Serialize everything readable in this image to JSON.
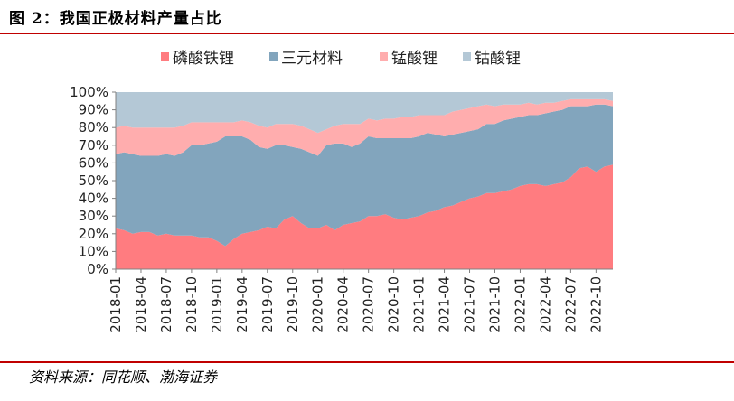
{
  "title": "图 2：我国正极材料产量占比",
  "source": "资料来源：同花顺、渤海证券",
  "chart_data": {
    "type": "area",
    "stacked": true,
    "percent": true,
    "ylim": [
      0,
      100
    ],
    "yticks": [
      "0%",
      "10%",
      "20%",
      "30%",
      "40%",
      "50%",
      "60%",
      "70%",
      "80%",
      "90%",
      "100%"
    ],
    "xtick_labels": [
      "2018-01",
      "2018-04",
      "2018-07",
      "2018-10",
      "2019-01",
      "2019-04",
      "2019-07",
      "2019-10",
      "2020-01",
      "2020-04",
      "2020-07",
      "2020-10",
      "2021-01",
      "2021-04",
      "2021-07",
      "2021-10",
      "2022-01",
      "2022-04",
      "2022-07",
      "2022-10"
    ],
    "x": [
      "2018-01",
      "2018-02",
      "2018-03",
      "2018-04",
      "2018-05",
      "2018-06",
      "2018-07",
      "2018-08",
      "2018-09",
      "2018-10",
      "2018-11",
      "2018-12",
      "2019-01",
      "2019-02",
      "2019-03",
      "2019-04",
      "2019-05",
      "2019-06",
      "2019-07",
      "2019-08",
      "2019-09",
      "2019-10",
      "2019-11",
      "2019-12",
      "2020-01",
      "2020-02",
      "2020-03",
      "2020-04",
      "2020-05",
      "2020-06",
      "2020-07",
      "2020-08",
      "2020-09",
      "2020-10",
      "2020-11",
      "2020-12",
      "2021-01",
      "2021-02",
      "2021-03",
      "2021-04",
      "2021-05",
      "2021-06",
      "2021-07",
      "2021-08",
      "2021-09",
      "2021-10",
      "2021-11",
      "2021-12",
      "2022-01",
      "2022-02",
      "2022-03",
      "2022-04",
      "2022-05",
      "2022-06",
      "2022-07",
      "2022-08",
      "2022-09",
      "2022-10",
      "2022-11",
      "2022-12"
    ],
    "grid": false,
    "legend_position": "top",
    "series": [
      {
        "name": "磷酸铁锂",
        "color": "#ff7c80",
        "values": [
          23,
          22,
          20,
          21,
          21,
          19,
          20,
          19,
          19,
          19,
          18,
          18,
          16,
          13,
          17,
          20,
          21,
          22,
          24,
          23,
          28,
          30,
          26,
          23,
          23,
          25,
          22,
          25,
          26,
          27,
          30,
          30,
          31,
          29,
          28,
          29,
          30,
          32,
          33,
          35,
          36,
          38,
          40,
          41,
          43,
          43,
          44,
          45,
          47,
          48,
          48,
          47,
          48,
          49,
          52,
          57,
          58,
          55,
          58,
          59
        ]
      },
      {
        "name": "三元材料",
        "color": "#82a5bd",
        "values": [
          42,
          44,
          45,
          43,
          43,
          45,
          45,
          45,
          47,
          51,
          52,
          53,
          56,
          62,
          58,
          55,
          52,
          47,
          44,
          47,
          42,
          39,
          42,
          43,
          41,
          45,
          49,
          46,
          43,
          44,
          45,
          44,
          43,
          45,
          46,
          45,
          45,
          45,
          43,
          40,
          40,
          39,
          38,
          38,
          39,
          39,
          40,
          40,
          39,
          39,
          39,
          41,
          41,
          41,
          40,
          35,
          34,
          38,
          35,
          33
        ]
      },
      {
        "name": "锰酸锂",
        "color": "#ffadae",
        "values": [
          15,
          15,
          15,
          16,
          16,
          16,
          15,
          16,
          15,
          13,
          13,
          12,
          11,
          8,
          8,
          9,
          10,
          12,
          12,
          12,
          12,
          13,
          13,
          13,
          13,
          9,
          10,
          11,
          13,
          11,
          10,
          10,
          11,
          11,
          12,
          12,
          12,
          10,
          11,
          12,
          13,
          13,
          13,
          13,
          11,
          10,
          9,
          8,
          7,
          7,
          6,
          6,
          5,
          5,
          4,
          4,
          4,
          3,
          3,
          3
        ]
      },
      {
        "name": "钴酸锂",
        "color": "#b4c8d6",
        "values": [
          20,
          19,
          20,
          20,
          20,
          20,
          20,
          20,
          19,
          17,
          17,
          17,
          17,
          17,
          17,
          16,
          17,
          19,
          20,
          18,
          18,
          18,
          19,
          21,
          23,
          21,
          19,
          18,
          18,
          18,
          15,
          16,
          15,
          15,
          14,
          14,
          13,
          13,
          13,
          13,
          11,
          10,
          9,
          8,
          7,
          8,
          7,
          7,
          7,
          6,
          7,
          6,
          6,
          5,
          4,
          4,
          4,
          4,
          4,
          5
        ]
      }
    ]
  }
}
